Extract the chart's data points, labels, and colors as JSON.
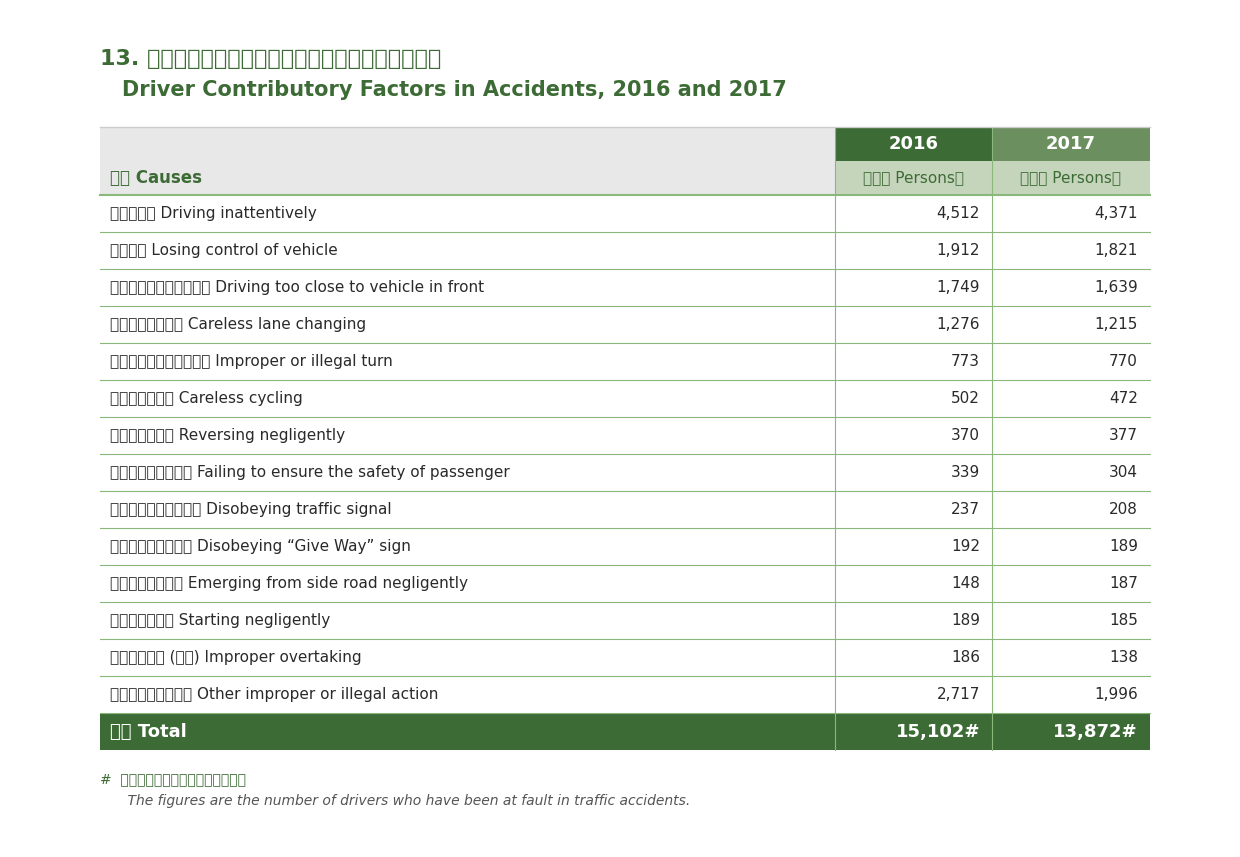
{
  "title_chinese": "13. 二零一六年及二零一七年涉及司機的交通意外成因",
  "title_english": "Driver Contributory Factors in Accidents, 2016 and 2017",
  "header_col": "原因 Causes",
  "header_subrow": "（人數 Persons）",
  "year_2016": "2016",
  "year_2017": "2017",
  "rows": [
    {
      "cause": "駕駛不留神 Driving inattentively",
      "v2016": "4,512",
      "v2017": "4,371"
    },
    {
      "cause": "車輛失控 Losing control of vehicle",
      "v2016": "1,912",
      "v2017": "1,821"
    },
    {
      "cause": "行車時太貼近前面的車輛 Driving too close to vehicle in front",
      "v2016": "1,749",
      "v2017": "1,639"
    },
    {
      "cause": "不小心轉換行車線 Careless lane changing",
      "v2016": "1,276",
      "v2017": "1,215"
    },
    {
      "cause": "不適當地或不合法地轉向 Improper or illegal turn",
      "v2016": "773",
      "v2017": "770"
    },
    {
      "cause": "不小心騎踏單車 Careless cycling",
      "v2016": "502",
      "v2017": "472"
    },
    {
      "cause": "疏忽地倒後行車 Reversing negligently",
      "v2016": "370",
      "v2017": "377"
    },
    {
      "cause": "沒有確保乘客的安全 Failing to ensure the safety of passenger",
      "v2016": "339",
      "v2017": "304"
    },
    {
      "cause": "不遵照交通燈號的指示 Disobeying traffic signal",
      "v2016": "237",
      "v2017": "208"
    },
    {
      "cause": "不遵照「讓路」標誌 Disobeying “Give Way” sign",
      "v2016": "192",
      "v2017": "189"
    },
    {
      "cause": "疏忽地從旁路駛出 Emerging from side road negligently",
      "v2016": "148",
      "v2017": "187"
    },
    {
      "cause": "疏忽地起動車輛 Starting negligently",
      "v2016": "189",
      "v2017": "185"
    },
    {
      "cause": "不適當地超車 (扒頭) Improper overtaking",
      "v2016": "186",
      "v2017": "138"
    },
    {
      "cause": "其他不當或違法行為 Other improper or illegal action",
      "v2016": "2,717",
      "v2017": "1,996"
    }
  ],
  "total_label": "合計 Total",
  "total_2016": "15,102#",
  "total_2017": "13,872#",
  "footnote_chinese": "#  數字為引致交通意外的司機人數。",
  "footnote_english": "    The figures are the number of drivers who have been at fault in traffic accidents.",
  "color_dark_green": "#3d6b35",
  "color_medium_green": "#6b8f5e",
  "color_light_green_header": "#c5d5bc",
  "color_row_separator": "#8ab87a",
  "color_white": "#ffffff",
  "color_light_gray_bg": "#ebebeb",
  "color_text_dark": "#2a2a2a",
  "color_green_title": "#3d6b35"
}
